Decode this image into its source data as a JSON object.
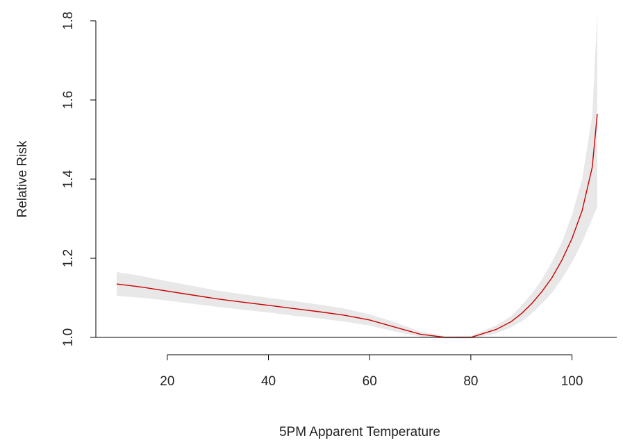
{
  "chart_data": {
    "type": "line",
    "title": "",
    "xlabel": "5PM Apparent Temperature",
    "ylabel": "Relative Risk",
    "xlim": [
      10,
      105
    ],
    "ylim": [
      1.0,
      1.8
    ],
    "x_ticks": [
      20,
      40,
      60,
      80,
      100
    ],
    "x_tick_labels": [
      "20",
      "40",
      "60",
      "80",
      "100"
    ],
    "y_ticks": [
      1.0,
      1.2,
      1.4,
      1.6,
      1.8
    ],
    "y_tick_labels": [
      "1.0",
      "1.2",
      "1.4",
      "1.6",
      "1.8"
    ],
    "grid": false,
    "series": [
      {
        "color": "#cc0000",
        "x": [
          10,
          15,
          20,
          25,
          30,
          35,
          40,
          45,
          50,
          55,
          60,
          65,
          70,
          75,
          80,
          85,
          88,
          90,
          92,
          94,
          96,
          98,
          100,
          102,
          104,
          105
        ],
        "y": [
          1.135,
          1.127,
          1.117,
          1.107,
          1.097,
          1.089,
          1.081,
          1.073,
          1.065,
          1.056,
          1.044,
          1.026,
          1.008,
          1.0,
          1.0,
          1.02,
          1.04,
          1.06,
          1.085,
          1.115,
          1.15,
          1.195,
          1.25,
          1.32,
          1.43,
          1.565
        ],
        "lower": [
          1.105,
          1.1,
          1.093,
          1.085,
          1.077,
          1.07,
          1.063,
          1.055,
          1.048,
          1.04,
          1.03,
          1.015,
          1.002,
          0.997,
          0.997,
          1.01,
          1.026,
          1.04,
          1.06,
          1.085,
          1.112,
          1.148,
          1.19,
          1.24,
          1.3,
          1.33
        ],
        "upper": [
          1.165,
          1.155,
          1.142,
          1.13,
          1.118,
          1.109,
          1.1,
          1.092,
          1.083,
          1.073,
          1.058,
          1.038,
          1.015,
          1.003,
          1.004,
          1.03,
          1.054,
          1.08,
          1.11,
          1.145,
          1.19,
          1.24,
          1.31,
          1.4,
          1.56,
          1.82
        ]
      }
    ],
    "band_color": "#e8e8e8"
  }
}
